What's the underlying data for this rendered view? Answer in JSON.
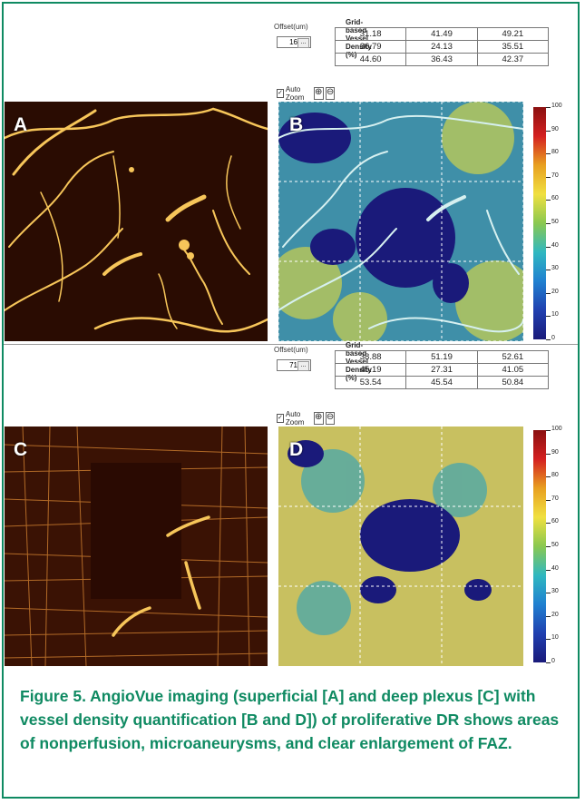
{
  "top": {
    "offset_label": "Offset(um)",
    "offset_value": "16",
    "offset_button": "...",
    "density_title": "Grid-based Vessel Density (%)",
    "density_rows": [
      [
        "31.18",
        "41.49",
        "49.21"
      ],
      [
        "36.79",
        "24.13",
        "35.51"
      ],
      [
        "44.60",
        "36.43",
        "42.37"
      ]
    ],
    "autozoom_label": "Auto Zoom",
    "checkbox_mark": "✓",
    "zoom_in": "⊕",
    "zoom_out": "⊖",
    "left_letter": "A",
    "right_letter": "B"
  },
  "bottom": {
    "offset_label": "Offset(um)",
    "offset_value": "71",
    "offset_button": "...",
    "density_title": "Grid-based Vessel Density (%)",
    "density_rows": [
      [
        "38.88",
        "51.19",
        "52.61"
      ],
      [
        "45.19",
        "27.31",
        "41.05"
      ],
      [
        "53.54",
        "45.54",
        "50.84"
      ]
    ],
    "autozoom_label": "Auto Zoom",
    "checkbox_mark": "✓",
    "zoom_in": "⊕",
    "zoom_out": "⊖",
    "left_letter": "C",
    "right_letter": "D"
  },
  "colorbar_ticks": [
    "100",
    "90",
    "80",
    "70",
    "60",
    "50",
    "40",
    "30",
    "20",
    "10",
    "0"
  ],
  "colors": {
    "border": "#0f8a62",
    "caption": "#0f8a62",
    "angio_dark": "#2a0c02",
    "angio_vessel": "#f7c65a",
    "density_low": "#1a1a7a",
    "density_high": "#9a1a1a"
  },
  "caption": "Figure 5.  AngioVue imaging (superficial [A] and deep plexus [C] with vessel density quantification [B and D]) of proliferative DR shows areas of nonperfusion, microaneurysms, and clear enlargement of FAZ."
}
